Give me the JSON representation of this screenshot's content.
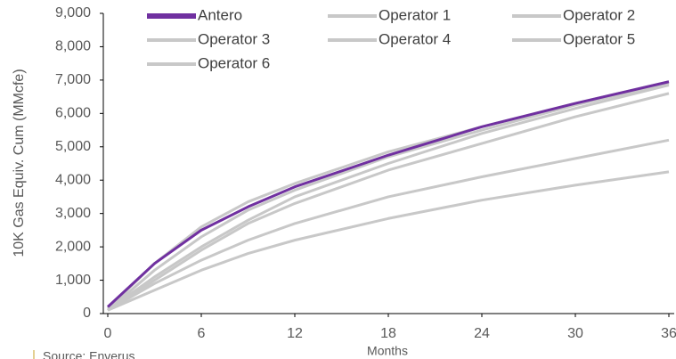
{
  "chart_data": {
    "type": "line",
    "y_label": "10K Gas Equiv. Cum (MMcfe)",
    "x_label": "Months",
    "source": "Source: Enverus",
    "x": [
      0,
      3,
      6,
      9,
      12,
      18,
      24,
      30,
      36
    ],
    "series": [
      {
        "name": "Antero",
        "color": "#7030a0",
        "values": [
          200,
          1500,
          2500,
          3200,
          3800,
          4750,
          5600,
          6300,
          6950
        ]
      },
      {
        "name": "Operator 1",
        "color": "#c8c8c8",
        "values": [
          150,
          1500,
          2600,
          3350,
          3900,
          4850,
          5600,
          6300,
          6950
        ]
      },
      {
        "name": "Operator 2",
        "color": "#c8c8c8",
        "values": [
          100,
          1300,
          2300,
          3100,
          3700,
          4700,
          5500,
          6250,
          6900
        ]
      },
      {
        "name": "Operator 3",
        "color": "#c8c8c8",
        "values": [
          100,
          1100,
          2000,
          2800,
          3500,
          4500,
          5400,
          6150,
          6850
        ]
      },
      {
        "name": "Operator 4",
        "color": "#c8c8c8",
        "values": [
          100,
          1000,
          1900,
          2700,
          3300,
          4300,
          5100,
          5900,
          6600
        ]
      },
      {
        "name": "Operator 5",
        "color": "#c8c8c8",
        "values": [
          100,
          900,
          1600,
          2200,
          2700,
          3500,
          4100,
          4650,
          5200
        ]
      },
      {
        "name": "Operator 6",
        "color": "#c8c8c8",
        "values": [
          100,
          700,
          1300,
          1800,
          2200,
          2850,
          3400,
          3850,
          4250
        ]
      }
    ],
    "xlim": [
      0,
      36
    ],
    "xticks": [
      0,
      6,
      12,
      18,
      24,
      30,
      36
    ],
    "ylim": [
      0,
      9000
    ],
    "yticks": [
      0,
      {
        "value": 1000,
        "label": "1,000"
      },
      {
        "value": 2000,
        "label": "2,000"
      },
      {
        "value": 3000,
        "label": "3,000"
      },
      {
        "value": 4000,
        "label": "4,000"
      },
      {
        "value": 5000,
        "label": "5,000"
      },
      {
        "value": 6000,
        "label": "6,000"
      },
      {
        "value": 7000,
        "label": "7,000"
      },
      {
        "value": 8000,
        "label": "8,000"
      },
      {
        "value": 9000,
        "label": "9,000"
      }
    ],
    "grid": false
  }
}
